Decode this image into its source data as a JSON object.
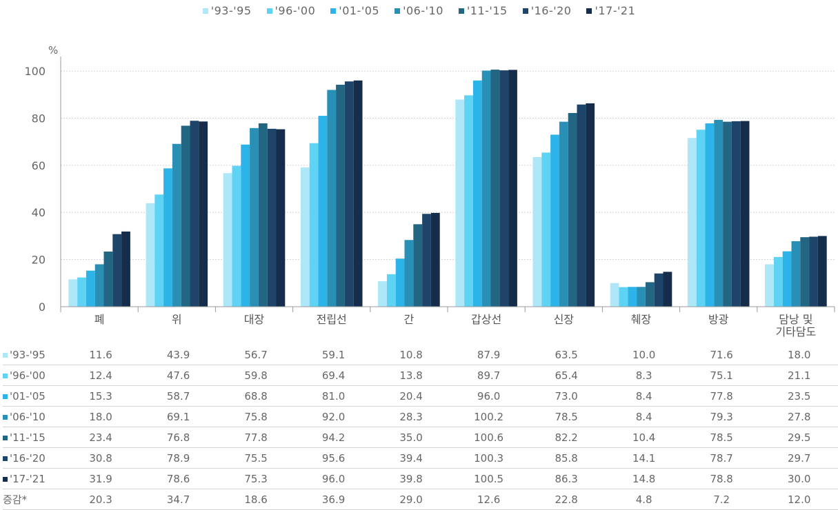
{
  "chart_data": {
    "type": "bar",
    "unit_label": "%",
    "ylim": [
      0,
      100
    ],
    "yticks": [
      0,
      20,
      40,
      60,
      80,
      100
    ],
    "grid": true,
    "legend_position": "top",
    "categories": [
      "폐",
      "위",
      "대장",
      "전립선",
      "간",
      "갑상선",
      "신장",
      "췌장",
      "방광",
      "담낭 및 기타담도"
    ],
    "series": [
      {
        "name": "'93-'95",
        "color": "#aee8f8",
        "values": [
          "11.6",
          "43.9",
          "56.7",
          "59.1",
          "10.8",
          "87.9",
          "63.5",
          "10.0",
          "71.6",
          "18.0"
        ]
      },
      {
        "name": "'96-'00",
        "color": "#5fd3f3",
        "values": [
          "12.4",
          "47.6",
          "59.8",
          "69.4",
          "13.8",
          "89.7",
          "65.4",
          "8.3",
          "75.1",
          "21.1"
        ]
      },
      {
        "name": "'01-'05",
        "color": "#2cb4e8",
        "values": [
          "15.3",
          "58.7",
          "68.8",
          "81.0",
          "20.4",
          "96.0",
          "73.0",
          "8.4",
          "77.8",
          "23.5"
        ]
      },
      {
        "name": "'06-'10",
        "color": "#2a8fb5",
        "values": [
          "18.0",
          "69.1",
          "75.8",
          "92.0",
          "28.3",
          "100.2",
          "78.5",
          "8.4",
          "79.3",
          "27.8"
        ]
      },
      {
        "name": "'11-'15",
        "color": "#236684",
        "values": [
          "23.4",
          "76.8",
          "77.8",
          "94.2",
          "35.0",
          "100.6",
          "82.2",
          "10.4",
          "78.5",
          "29.5"
        ]
      },
      {
        "name": "'16-'20",
        "color": "#1e4569",
        "values": [
          "30.8",
          "78.9",
          "75.5",
          "95.6",
          "39.4",
          "100.3",
          "85.8",
          "14.1",
          "78.7",
          "29.7"
        ]
      },
      {
        "name": "'17-'21",
        "color": "#152c4a",
        "values": [
          "31.9",
          "78.6",
          "75.3",
          "96.0",
          "39.8",
          "100.5",
          "86.3",
          "14.8",
          "78.8",
          "30.0"
        ]
      }
    ],
    "change_row": {
      "label": "증감*",
      "values": [
        "20.3",
        "34.7",
        "18.6",
        "36.9",
        "29.0",
        "12.6",
        "22.8",
        "4.8",
        "7.2",
        "12.0"
      ]
    }
  }
}
